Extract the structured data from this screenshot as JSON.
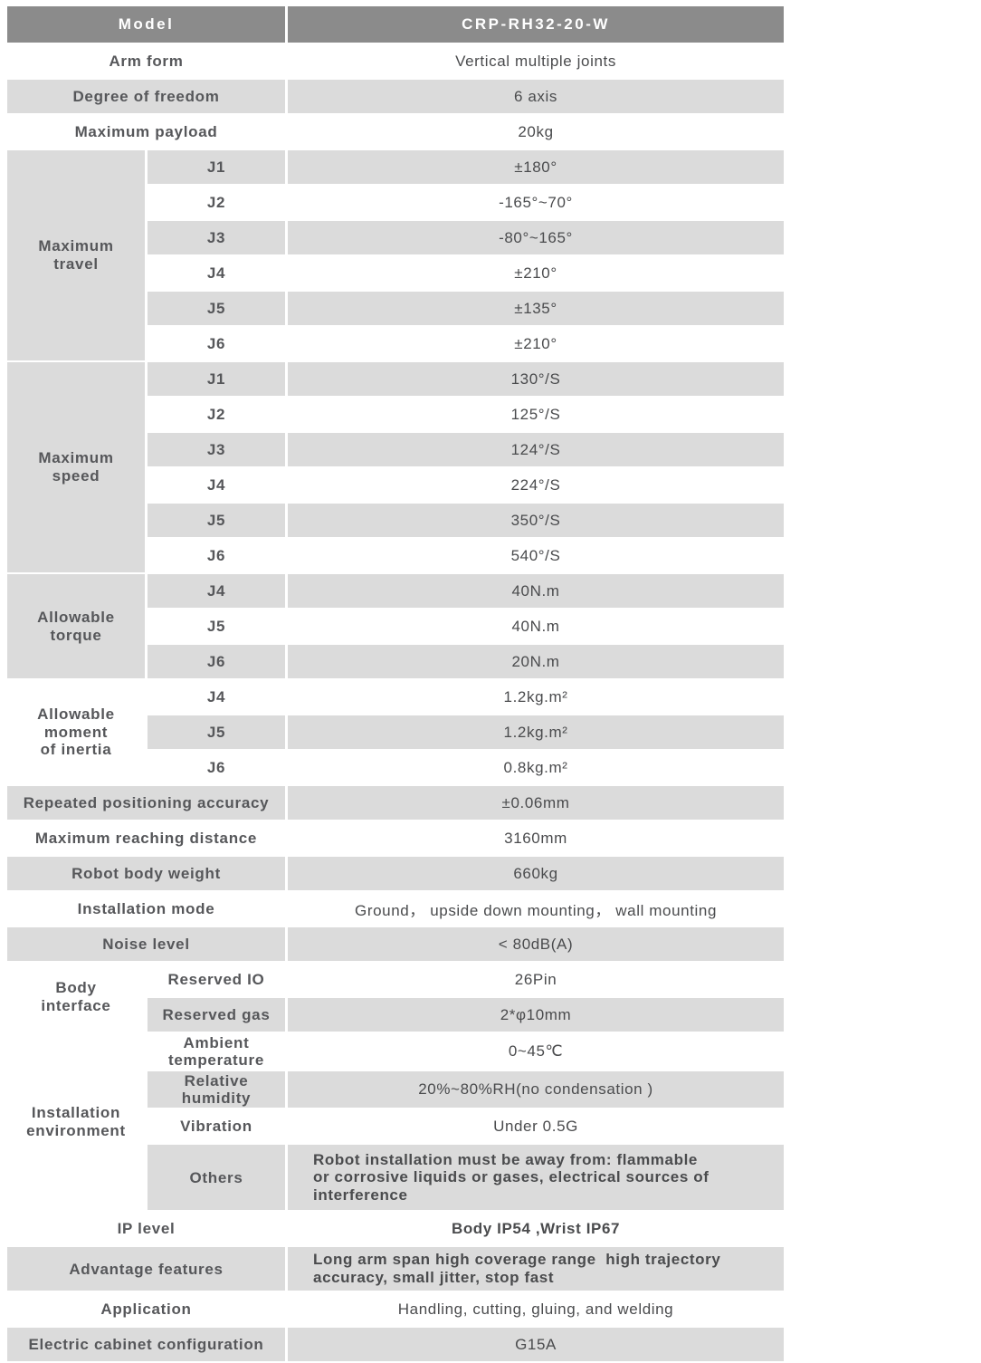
{
  "colors": {
    "header_bg": "#8b8b8b",
    "header_text": "#ffffff",
    "row_alt_bg": "#dbdbdb",
    "row_bg": "#ffffff",
    "group_dark_bg": "#c7c7c7",
    "group_light_bg": "#eeeeee",
    "label_text": "#56575a",
    "value_text": "#4a4b4d"
  },
  "model_header": {
    "label": "Model",
    "value": "CRP-RH32-20-W"
  },
  "general": [
    {
      "label": "Arm form",
      "value": "Vertical multiple joints"
    },
    {
      "label": "Degree of freedom",
      "value": "6 axis"
    },
    {
      "label": "Maximum payload",
      "value": "20kg"
    }
  ],
  "maximum_travel": {
    "label": "Maximum\ntravel",
    "joints": [
      {
        "j": "J1",
        "v": "±180°"
      },
      {
        "j": "J2",
        "v": "-165°~70°"
      },
      {
        "j": "J3",
        "v": "-80°~165°"
      },
      {
        "j": "J4",
        "v": "±210°"
      },
      {
        "j": "J5",
        "v": "±135°"
      },
      {
        "j": "J6",
        "v": "±210°"
      }
    ]
  },
  "maximum_speed": {
    "label": "Maximum\nspeed",
    "joints": [
      {
        "j": "J1",
        "v": "130°/S"
      },
      {
        "j": "J2",
        "v": "125°/S"
      },
      {
        "j": "J3",
        "v": "124°/S"
      },
      {
        "j": "J4",
        "v": "224°/S"
      },
      {
        "j": "J5",
        "v": "350°/S"
      },
      {
        "j": "J6",
        "v": "540°/S"
      }
    ]
  },
  "allowable_torque": {
    "label": "Allowable\ntorque",
    "joints": [
      {
        "j": "J4",
        "v": "40N.m"
      },
      {
        "j": "J5",
        "v": "40N.m"
      },
      {
        "j": "J6",
        "v": "20N.m"
      }
    ]
  },
  "allowable_moment_of_inertia": {
    "label": "Allowable\nmoment\nof inertia",
    "joints": [
      {
        "j": "J4",
        "v": "1.2kg.m²"
      },
      {
        "j": "J5",
        "v": "1.2kg.m²"
      },
      {
        "j": "J6",
        "v": "0.8kg.m²"
      }
    ]
  },
  "performance": [
    {
      "label": "Repeated positioning accuracy",
      "value": "±0.06mm"
    },
    {
      "label": "Maximum reaching distance",
      "value": "3160mm"
    },
    {
      "label": "Robot body weight",
      "value": "660kg"
    },
    {
      "label": "Installation mode",
      "value": "Ground， upside down mounting， wall mounting"
    },
    {
      "label": "Noise level",
      "value": "< 80dB(A)"
    }
  ],
  "body_interface": {
    "label": "Body\ninterface",
    "rows": [
      {
        "sub": "Reserved IO",
        "value": "26Pin"
      },
      {
        "sub": "Reserved gas",
        "value": "2*φ10mm"
      }
    ]
  },
  "installation_environment": {
    "label": "Installation\nenvironment",
    "rows": [
      {
        "sub": "Ambient\ntemperature",
        "value": "0~45℃"
      },
      {
        "sub": "Relative\nhumidity",
        "value": "20%~80%RH(no condensation )"
      },
      {
        "sub": "Vibration",
        "value": "Under 0.5G"
      },
      {
        "sub": "Others",
        "value": "Robot installation must be away from: flammable\nor corrosive liquids or gases, electrical sources of\ninterference"
      }
    ]
  },
  "footer": [
    {
      "label": "IP level",
      "value": "Body IP54 ,Wrist IP67"
    },
    {
      "label": "Advantage features",
      "value": "Long arm span high coverage range  high trajectory\naccuracy, small jitter, stop fast"
    },
    {
      "label": "Application",
      "value": "Handling, cutting, gluing, and welding"
    },
    {
      "label": "Electric cabinet configuration",
      "value": "G15A"
    }
  ]
}
